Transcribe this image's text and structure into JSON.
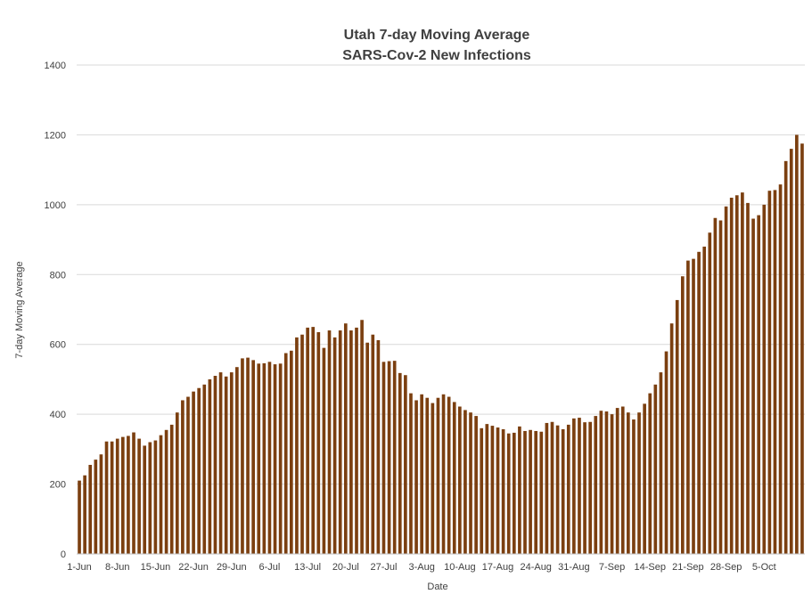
{
  "chart_data": {
    "type": "bar",
    "title": "Utah 7-day Moving Average",
    "subtitle": "SARS-Cov-2 New Infections",
    "xlabel": "Date",
    "ylabel": "7-day Moving Average",
    "ylim": [
      0,
      1400
    ],
    "yticks": [
      0,
      200,
      400,
      600,
      800,
      1000,
      1200,
      1400
    ],
    "grid": true,
    "legend": "none",
    "colors": {
      "bar": "#7b3f10",
      "grid": "#d9d9d9",
      "axis": "#bfbfbf",
      "text": "#404040"
    },
    "tick_labels": [
      {
        "label": "1-Jun",
        "index": 0
      },
      {
        "label": "8-Jun",
        "index": 7
      },
      {
        "label": "15-Jun",
        "index": 14
      },
      {
        "label": "22-Jun",
        "index": 21
      },
      {
        "label": "29-Jun",
        "index": 28
      },
      {
        "label": "6-Jul",
        "index": 35
      },
      {
        "label": "13-Jul",
        "index": 42
      },
      {
        "label": "20-Jul",
        "index": 49
      },
      {
        "label": "27-Jul",
        "index": 56
      },
      {
        "label": "3-Aug",
        "index": 63
      },
      {
        "label": "10-Aug",
        "index": 70
      },
      {
        "label": "17-Aug",
        "index": 77
      },
      {
        "label": "24-Aug",
        "index": 84
      },
      {
        "label": "31-Aug",
        "index": 91
      },
      {
        "label": "7-Sep",
        "index": 98
      },
      {
        "label": "14-Sep",
        "index": 105
      },
      {
        "label": "21-Sep",
        "index": 112
      },
      {
        "label": "28-Sep",
        "index": 119
      },
      {
        "label": "5-Oct",
        "index": 126
      }
    ],
    "values": [
      210,
      225,
      255,
      270,
      285,
      322,
      322,
      330,
      335,
      338,
      348,
      330,
      310,
      320,
      325,
      340,
      355,
      370,
      405,
      440,
      450,
      465,
      475,
      485,
      500,
      510,
      520,
      508,
      520,
      535,
      560,
      562,
      555,
      545,
      546,
      550,
      543,
      545,
      575,
      582,
      620,
      628,
      648,
      650,
      635,
      590,
      640,
      620,
      640,
      660,
      640,
      648,
      670,
      605,
      628,
      612,
      550,
      552,
      553,
      518,
      512,
      460,
      440,
      457,
      447,
      432,
      447,
      457,
      450,
      435,
      422,
      412,
      405,
      395,
      360,
      372,
      367,
      362,
      357,
      345,
      347,
      365,
      352,
      355,
      352,
      350,
      375,
      378,
      368,
      357,
      370,
      388,
      390,
      377,
      378,
      395,
      410,
      408,
      400,
      418,
      422,
      405,
      385,
      405,
      430,
      460,
      485,
      520,
      580,
      660,
      727,
      795,
      840,
      845,
      865,
      880,
      920,
      962,
      955,
      995,
      1020,
      1027,
      1035,
      1005,
      960,
      970,
      1000,
      1040,
      1042,
      1058,
      1125,
      1160,
      1200,
      1175
    ]
  }
}
